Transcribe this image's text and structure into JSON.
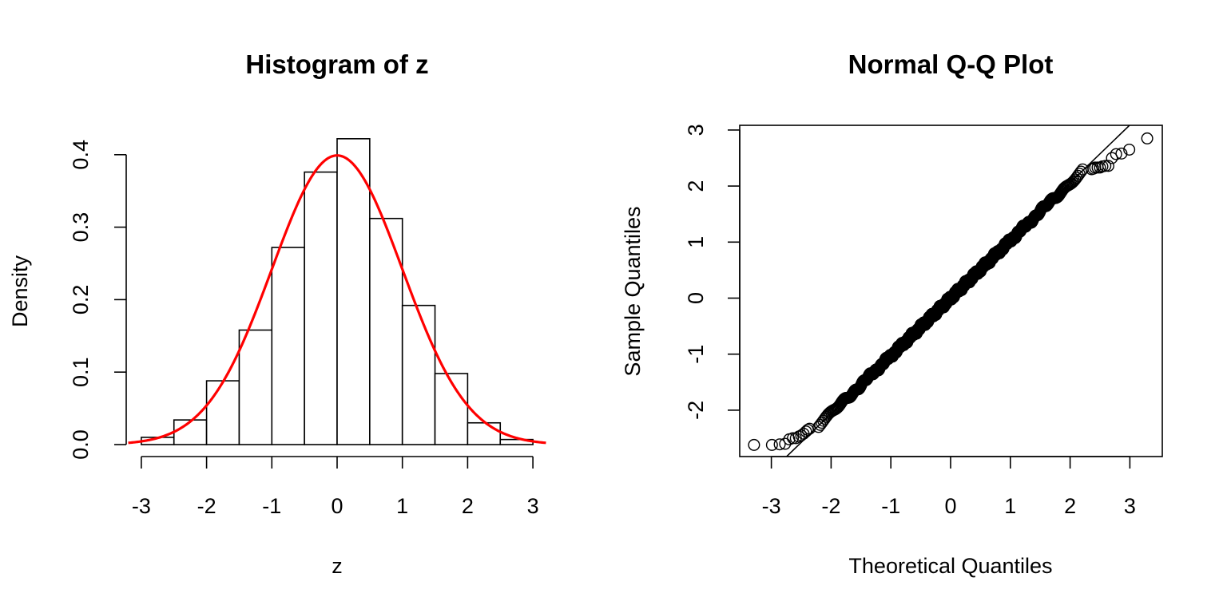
{
  "chart_data": [
    {
      "type": "bar",
      "title": "Histogram of z",
      "xlabel": "z",
      "ylabel": "Density",
      "xlim": [
        -3.3,
        3.2
      ],
      "ylim": [
        0,
        0.4
      ],
      "x_ticks": [
        "-3",
        "-2",
        "-1",
        "0",
        "1",
        "2",
        "3"
      ],
      "y_ticks": [
        "0.0",
        "0.1",
        "0.2",
        "0.3",
        "0.4"
      ],
      "bins": [
        {
          "from": -3.0,
          "to": -2.5,
          "density": 0.01
        },
        {
          "from": -2.5,
          "to": -2.0,
          "density": 0.034
        },
        {
          "from": -2.0,
          "to": -1.5,
          "density": 0.088
        },
        {
          "from": -1.5,
          "to": -1.0,
          "density": 0.158
        },
        {
          "from": -1.0,
          "to": -0.5,
          "density": 0.272
        },
        {
          "from": -0.5,
          "to": 0.0,
          "density": 0.376
        },
        {
          "from": 0.0,
          "to": 0.5,
          "density": 0.422
        },
        {
          "from": 0.5,
          "to": 1.0,
          "density": 0.312
        },
        {
          "from": 1.0,
          "to": 1.5,
          "density": 0.192
        },
        {
          "from": 1.5,
          "to": 2.0,
          "density": 0.098
        },
        {
          "from": 2.0,
          "to": 2.5,
          "density": 0.03
        },
        {
          "from": 2.5,
          "to": 3.0,
          "density": 0.007
        }
      ],
      "overlay": {
        "type": "normal-density",
        "mean": 0,
        "sd": 1,
        "color": "#ff0000"
      }
    },
    {
      "type": "scatter",
      "title": "Normal Q-Q Plot",
      "xlabel": "Theoretical Quantiles",
      "ylabel": "Sample Quantiles",
      "xlim": [
        -3.3,
        3.3
      ],
      "ylim": [
        -2.8,
        3.0
      ],
      "x_ticks": [
        "-3",
        "-2",
        "-1",
        "0",
        "1",
        "2",
        "3"
      ],
      "y_ticks": [
        "-2",
        "-1",
        "0",
        "1",
        "2",
        "3"
      ],
      "n_points": 1000,
      "reference_line": {
        "intercept": 0,
        "slope": 1.03
      },
      "low_tail": [
        [
          -3.29,
          -2.62
        ],
        [
          -2.99,
          -2.62
        ],
        [
          -2.86,
          -2.61
        ],
        [
          -2.77,
          -2.6
        ],
        [
          -2.7,
          -2.52
        ],
        [
          -2.64,
          -2.5
        ],
        [
          -2.59,
          -2.5
        ],
        [
          -2.54,
          -2.47
        ],
        [
          -2.5,
          -2.45
        ],
        [
          -2.46,
          -2.42
        ],
        [
          -2.42,
          -2.38
        ],
        [
          -2.39,
          -2.35
        ],
        [
          -2.36,
          -2.33
        ]
      ],
      "high_tail": [
        [
          2.36,
          2.3
        ],
        [
          2.39,
          2.31
        ],
        [
          2.42,
          2.33
        ],
        [
          2.46,
          2.33
        ],
        [
          2.5,
          2.33
        ],
        [
          2.54,
          2.35
        ],
        [
          2.59,
          2.36
        ],
        [
          2.64,
          2.36
        ],
        [
          2.7,
          2.5
        ],
        [
          2.77,
          2.57
        ],
        [
          2.86,
          2.58
        ],
        [
          2.99,
          2.65
        ],
        [
          3.29,
          2.85
        ]
      ]
    }
  ]
}
